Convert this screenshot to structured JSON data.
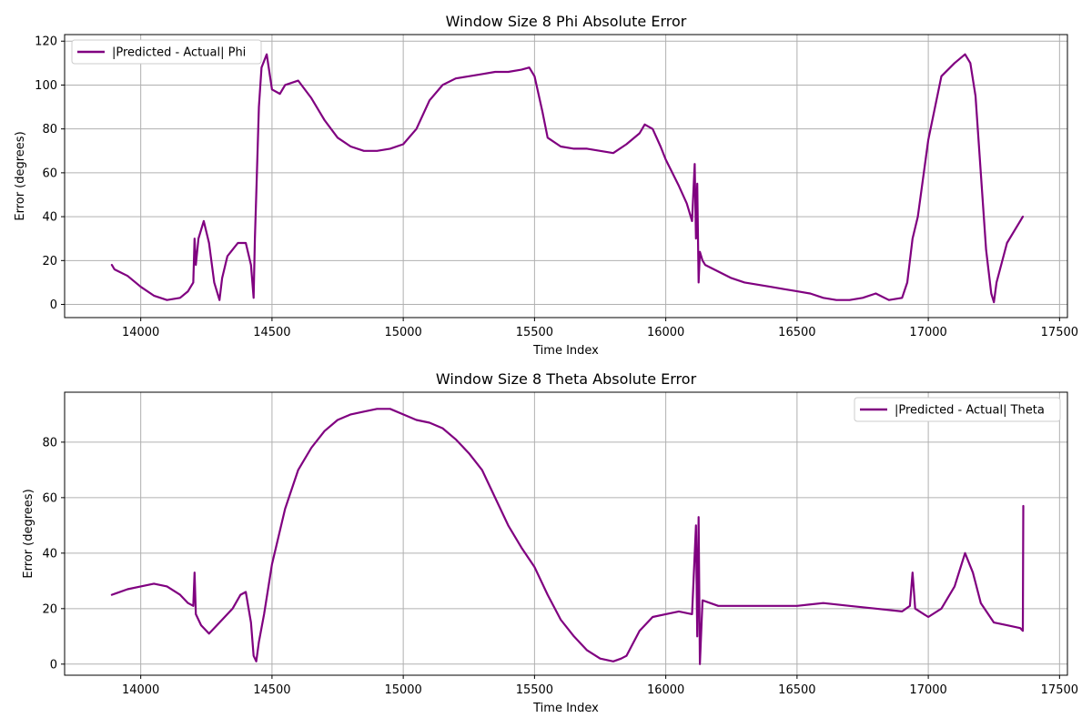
{
  "chart_data": [
    {
      "type": "line",
      "title": "Window Size 8 Phi Absolute Error",
      "xlabel": "Time Index",
      "ylabel": "Error (degrees)",
      "xlim": [
        13710,
        17530
      ],
      "ylim": [
        -6,
        123
      ],
      "xticks": [
        14000,
        14500,
        15000,
        15500,
        16000,
        16500,
        17000,
        17500
      ],
      "yticks": [
        0,
        20,
        40,
        60,
        80,
        100,
        120
      ],
      "grid": true,
      "legend_position": "top-left",
      "color": "#800080",
      "series": [
        {
          "name": "|Predicted - Actual| Phi",
          "x": [
            13890,
            13900,
            13950,
            14000,
            14050,
            14100,
            14150,
            14180,
            14200,
            14205,
            14210,
            14220,
            14240,
            14260,
            14280,
            14300,
            14310,
            14330,
            14350,
            14370,
            14400,
            14420,
            14430,
            14435,
            14440,
            14450,
            14460,
            14480,
            14500,
            14530,
            14550,
            14600,
            14650,
            14700,
            14750,
            14800,
            14850,
            14900,
            14950,
            15000,
            15050,
            15100,
            15150,
            15200,
            15250,
            15300,
            15350,
            15400,
            15450,
            15480,
            15500,
            15530,
            15550,
            15600,
            15650,
            15700,
            15750,
            15800,
            15850,
            15900,
            15920,
            15950,
            15980,
            16000,
            16050,
            16080,
            16100,
            16110,
            16115,
            16120,
            16125,
            16130,
            16140,
            16150,
            16200,
            16250,
            16300,
            16350,
            16400,
            16450,
            16500,
            16550,
            16600,
            16650,
            16700,
            16750,
            16800,
            16850,
            16900,
            16920,
            16940,
            16960,
            17000,
            17050,
            17100,
            17140,
            17160,
            17180,
            17200,
            17220,
            17240,
            17250,
            17260,
            17300,
            17350,
            17360
          ],
          "y": [
            18,
            16,
            13,
            8,
            4,
            2,
            3,
            6,
            10,
            30,
            18,
            30,
            38,
            28,
            10,
            2,
            12,
            22,
            25,
            28,
            28,
            18,
            3,
            30,
            50,
            90,
            108,
            114,
            98,
            96,
            100,
            102,
            94,
            84,
            76,
            72,
            70,
            70,
            71,
            73,
            80,
            93,
            100,
            103,
            104,
            105,
            106,
            106,
            107,
            108,
            104,
            88,
            76,
            72,
            71,
            71,
            70,
            69,
            73,
            78,
            82,
            80,
            72,
            66,
            54,
            46,
            38,
            64,
            30,
            55,
            10,
            24,
            20,
            18,
            15,
            12,
            10,
            9,
            8,
            7,
            6,
            5,
            3,
            2,
            2,
            3,
            5,
            2,
            3,
            10,
            30,
            40,
            75,
            104,
            110,
            114,
            110,
            95,
            60,
            25,
            5,
            1,
            10,
            28,
            38,
            40
          ]
        }
      ]
    },
    {
      "type": "line",
      "title": "Window Size 8 Theta Absolute Error",
      "xlabel": "Time Index",
      "ylabel": "Error (degrees)",
      "xlim": [
        13710,
        17530
      ],
      "ylim": [
        -4,
        98
      ],
      "xticks": [
        14000,
        14500,
        15000,
        15500,
        16000,
        16500,
        17000,
        17500
      ],
      "yticks": [
        0,
        20,
        40,
        60,
        80
      ],
      "grid": true,
      "legend_position": "top-right",
      "color": "#800080",
      "series": [
        {
          "name": "|Predicted - Actual| Theta",
          "x": [
            13890,
            13950,
            14000,
            14050,
            14100,
            14150,
            14180,
            14200,
            14205,
            14210,
            14230,
            14260,
            14300,
            14350,
            14380,
            14400,
            14420,
            14430,
            14440,
            14450,
            14470,
            14500,
            14550,
            14600,
            14650,
            14700,
            14750,
            14800,
            14850,
            14900,
            14950,
            15000,
            15050,
            15100,
            15150,
            15200,
            15250,
            15300,
            15350,
            15400,
            15450,
            15500,
            15550,
            15600,
            15650,
            15700,
            15750,
            15800,
            15830,
            15850,
            15900,
            15950,
            16000,
            16050,
            16100,
            16115,
            16120,
            16125,
            16130,
            16140,
            16200,
            16300,
            16400,
            16500,
            16600,
            16700,
            16800,
            16900,
            16930,
            16940,
            16950,
            17000,
            17050,
            17100,
            17140,
            17170,
            17200,
            17250,
            17300,
            17350,
            17360,
            17362
          ],
          "y": [
            25,
            27,
            28,
            29,
            28,
            25,
            22,
            21,
            33,
            18,
            14,
            11,
            15,
            20,
            25,
            26,
            15,
            3,
            1,
            8,
            18,
            36,
            56,
            70,
            78,
            84,
            88,
            90,
            91,
            92,
            92,
            90,
            88,
            87,
            85,
            81,
            76,
            70,
            60,
            50,
            42,
            35,
            25,
            16,
            10,
            5,
            2,
            1,
            2,
            3,
            12,
            17,
            18,
            19,
            18,
            50,
            10,
            53,
            0,
            23,
            21,
            21,
            21,
            21,
            22,
            21,
            20,
            19,
            21,
            33,
            20,
            17,
            20,
            28,
            40,
            33,
            22,
            15,
            14,
            13,
            12,
            57
          ]
        }
      ]
    }
  ]
}
